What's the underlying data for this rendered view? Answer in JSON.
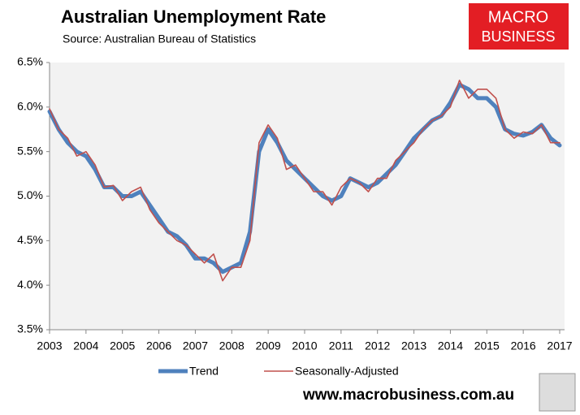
{
  "chart_data": {
    "type": "line",
    "title": "Australian Unemployment Rate",
    "subtitle": "Source: Australian Bureau of Statistics",
    "logo": [
      "MACRO",
      "BUSINESS"
    ],
    "website": "www.macrobusiness.com.au",
    "x": [
      2003,
      2003.25,
      2003.5,
      2003.75,
      2004,
      2004.25,
      2004.5,
      2004.75,
      2005,
      2005.25,
      2005.5,
      2005.75,
      2006,
      2006.25,
      2006.5,
      2006.75,
      2007,
      2007.25,
      2007.5,
      2007.75,
      2008,
      2008.25,
      2008.5,
      2008.75,
      2009,
      2009.25,
      2009.5,
      2009.75,
      2010,
      2010.25,
      2010.5,
      2010.75,
      2011,
      2011.25,
      2011.5,
      2011.75,
      2012,
      2012.25,
      2012.5,
      2012.75,
      2013,
      2013.25,
      2013.5,
      2013.75,
      2014,
      2014.25,
      2014.5,
      2014.75,
      2015,
      2015.25,
      2015.5,
      2015.75,
      2016,
      2016.25,
      2016.5,
      2016.75,
      2017
    ],
    "series": [
      {
        "name": "Trend",
        "color": "#4f81bd",
        "values": [
          5.95,
          5.75,
          5.6,
          5.5,
          5.45,
          5.3,
          5.1,
          5.1,
          5.0,
          5.0,
          5.05,
          4.9,
          4.75,
          4.6,
          4.55,
          4.45,
          4.3,
          4.3,
          4.25,
          4.15,
          4.2,
          4.25,
          4.6,
          5.5,
          5.75,
          5.6,
          5.4,
          5.3,
          5.2,
          5.1,
          5.0,
          4.95,
          5.0,
          5.2,
          5.15,
          5.1,
          5.15,
          5.25,
          5.35,
          5.5,
          5.65,
          5.75,
          5.85,
          5.9,
          6.05,
          6.25,
          6.2,
          6.1,
          6.1,
          6.0,
          5.75,
          5.7,
          5.68,
          5.72,
          5.8,
          5.65,
          5.57
        ]
      },
      {
        "name": "Seasonally-Adjusted",
        "color": "#c0504d",
        "values": [
          5.98,
          5.75,
          5.65,
          5.45,
          5.5,
          5.35,
          5.1,
          5.12,
          4.95,
          5.05,
          5.1,
          4.85,
          4.7,
          4.6,
          4.5,
          4.45,
          4.35,
          4.25,
          4.35,
          4.05,
          4.2,
          4.2,
          4.5,
          5.6,
          5.8,
          5.65,
          5.3,
          5.35,
          5.2,
          5.05,
          5.05,
          4.9,
          5.1,
          5.2,
          5.15,
          5.05,
          5.2,
          5.2,
          5.4,
          5.5,
          5.6,
          5.75,
          5.85,
          5.9,
          6.0,
          6.3,
          6.1,
          6.2,
          6.2,
          6.1,
          5.75,
          5.65,
          5.72,
          5.7,
          5.8,
          5.6,
          5.6
        ]
      }
    ],
    "xlim": [
      2003,
      2017
    ],
    "xticks": [
      2003,
      2004,
      2005,
      2006,
      2007,
      2008,
      2009,
      2010,
      2011,
      2012,
      2013,
      2014,
      2015,
      2016,
      2017
    ],
    "ylim": [
      3.5,
      6.5
    ],
    "yticks": [
      {
        "value": 3.5,
        "label": "3.5%"
      },
      {
        "value": 4.0,
        "label": "4.0%"
      },
      {
        "value": 4.5,
        "label": "4.5%"
      },
      {
        "value": 5.0,
        "label": "5.0%"
      },
      {
        "value": 5.5,
        "label": "5.5%"
      },
      {
        "value": 6.0,
        "label": "6.0%"
      },
      {
        "value": 6.5,
        "label": "6.5%"
      }
    ],
    "grid": false,
    "legend": "bottom"
  }
}
